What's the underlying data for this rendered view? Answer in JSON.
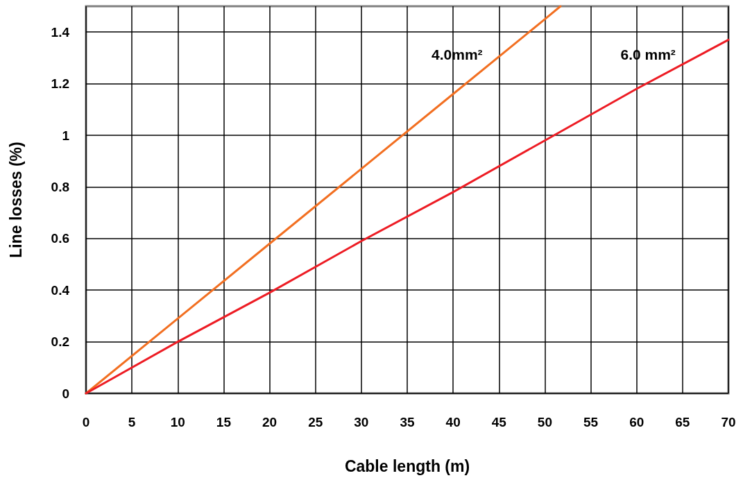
{
  "chart_data": {
    "type": "line",
    "xlabel": "Cable length (m)",
    "ylabel": "Line losses (%)",
    "xlim": [
      0,
      70
    ],
    "xticks": [
      0,
      5,
      10,
      15,
      20,
      25,
      30,
      35,
      40,
      45,
      50,
      55,
      60,
      65,
      70
    ],
    "ylim": [
      0,
      1.5
    ],
    "yticks": [
      0,
      0.2,
      0.4,
      0.6,
      0.8,
      1,
      1.2,
      1.4
    ],
    "grid": true,
    "marker": "none",
    "line_style": "solid",
    "series": [
      {
        "name": "4.0mm²",
        "color": "#f26f21",
        "x": [
          0,
          10,
          20,
          30,
          40,
          50,
          51.7
        ],
        "values": [
          0,
          0.29,
          0.58,
          0.87,
          1.16,
          1.45,
          1.5
        ]
      },
      {
        "name": "6.0 mm²",
        "color": "#ed1c24",
        "x": [
          0,
          10,
          20,
          30,
          40,
          50,
          60,
          70
        ],
        "values": [
          0,
          0.2,
          0.39,
          0.59,
          0.78,
          0.98,
          1.18,
          1.37
        ]
      }
    ]
  }
}
